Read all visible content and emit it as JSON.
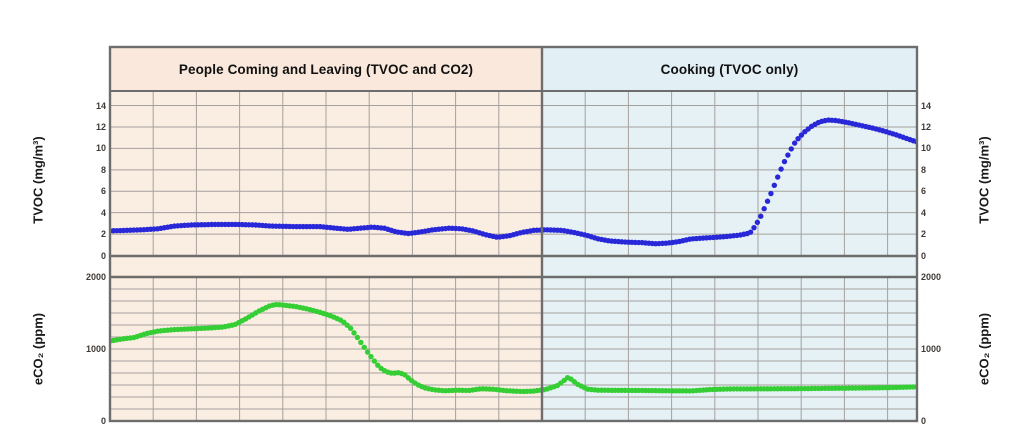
{
  "page": {
    "background": "#FFFFFF"
  },
  "regions": [
    {
      "title": "People Coming and Leaving (TVOC and CO2)",
      "background": "#F9E8DB",
      "plot_background": "#FAEDE2"
    },
    {
      "title": "Cooking (TVOC only)",
      "background": "#E2EFF5",
      "plot_background": "#E6F1F5"
    }
  ],
  "axes": {
    "tvoc_left": {
      "label": "TVOC (mg/m³)",
      "ticks": [
        "14",
        "12",
        "10",
        "8",
        "6",
        "4",
        "2",
        "0"
      ]
    },
    "tvoc_right": {
      "label": "TVOC (mg/m³)",
      "ticks": [
        "14",
        "12",
        "10",
        "8",
        "6",
        "4",
        "2",
        "0"
      ]
    },
    "eco2_left": {
      "label": "eCO₂ (ppm)",
      "ticks": [
        "2000",
        "1000",
        "0"
      ]
    },
    "eco2_right": {
      "label": "eCO₂ (ppm)",
      "ticks": [
        "2000",
        "1000",
        "0"
      ]
    }
  },
  "colors": {
    "tvoc_line": "#2828D8",
    "eco2_line": "#35CE35",
    "grid": "#A6A19D",
    "border": "#6D6D6D",
    "tick_text": "#3F3A36"
  },
  "chart_data": [
    {
      "type": "scatter",
      "title": "TVOC over time during people presence and cooking events",
      "ylabel": "TVOC (mg/m³)",
      "ylim": [
        0,
        14
      ],
      "ytick_step": 2,
      "grid": true,
      "legend": "none",
      "x_axis": "time (unlabeled), expressed as percent of plot width",
      "region_split_x_percent": 53.5,
      "region_labels": [
        "People Coming and Leaving (TVOC and CO2)",
        "Cooking (TVOC only)"
      ],
      "series": [
        {
          "name": "TVOC",
          "color": "#2828D8",
          "points": [
            [
              0,
              2.3
            ],
            [
              2,
              2.35
            ],
            [
              4,
              2.4
            ],
            [
              6,
              2.5
            ],
            [
              8,
              2.75
            ],
            [
              10,
              2.85
            ],
            [
              13,
              2.9
            ],
            [
              16,
              2.9
            ],
            [
              18,
              2.85
            ],
            [
              20,
              2.75
            ],
            [
              23,
              2.7
            ],
            [
              26,
              2.7
            ],
            [
              28,
              2.55
            ],
            [
              29.5,
              2.45
            ],
            [
              31,
              2.55
            ],
            [
              32.5,
              2.65
            ],
            [
              34,
              2.55
            ],
            [
              35.5,
              2.2
            ],
            [
              37,
              2.05
            ],
            [
              38.5,
              2.2
            ],
            [
              40,
              2.4
            ],
            [
              42,
              2.55
            ],
            [
              43.5,
              2.5
            ],
            [
              45,
              2.3
            ],
            [
              46.5,
              1.95
            ],
            [
              48,
              1.7
            ],
            [
              49.5,
              1.85
            ],
            [
              51,
              2.15
            ],
            [
              52.5,
              2.35
            ],
            [
              54,
              2.4
            ],
            [
              56,
              2.35
            ],
            [
              57.5,
              2.15
            ],
            [
              59,
              1.9
            ],
            [
              60.5,
              1.55
            ],
            [
              62,
              1.35
            ],
            [
              64,
              1.25
            ],
            [
              66,
              1.2
            ],
            [
              67.5,
              1.1
            ],
            [
              69,
              1.15
            ],
            [
              70.5,
              1.3
            ],
            [
              72,
              1.55
            ],
            [
              74,
              1.65
            ],
            [
              76,
              1.75
            ],
            [
              78,
              1.9
            ],
            [
              79.3,
              2.1
            ],
            [
              80,
              2.8
            ],
            [
              80.6,
              3.6
            ],
            [
              81.2,
              4.6
            ],
            [
              81.8,
              5.6
            ],
            [
              82.4,
              6.7
            ],
            [
              83,
              7.8
            ],
            [
              83.6,
              8.8
            ],
            [
              84.3,
              9.8
            ],
            [
              85,
              10.7
            ],
            [
              86,
              11.5
            ],
            [
              87,
              12.1
            ],
            [
              88,
              12.5
            ],
            [
              89,
              12.65
            ],
            [
              90,
              12.6
            ],
            [
              91.5,
              12.4
            ],
            [
              93,
              12.15
            ],
            [
              94.5,
              11.9
            ],
            [
              96,
              11.6
            ],
            [
              97.5,
              11.25
            ],
            [
              99,
              10.85
            ],
            [
              100,
              10.6
            ]
          ]
        }
      ]
    },
    {
      "type": "scatter",
      "title": "eCO₂ over time during people presence and cooking events",
      "ylabel": "eCO₂ (ppm)",
      "ylim": [
        0,
        2000
      ],
      "ytick_step": 1000,
      "grid": true,
      "legend": "none",
      "x_axis": "time (unlabeled), expressed as percent of plot width",
      "region_split_x_percent": 53.5,
      "region_labels": [
        "People Coming and Leaving (TVOC and CO2)",
        "Cooking (TVOC only)"
      ],
      "series": [
        {
          "name": "eCO2",
          "color": "#35CE35",
          "points": [
            [
              0,
              1110
            ],
            [
              1.5,
              1140
            ],
            [
              3,
              1160
            ],
            [
              4.5,
              1215
            ],
            [
              6,
              1250
            ],
            [
              8,
              1270
            ],
            [
              10,
              1280
            ],
            [
              12,
              1290
            ],
            [
              14,
              1305
            ],
            [
              15.5,
              1340
            ],
            [
              17,
              1430
            ],
            [
              18.5,
              1530
            ],
            [
              19.8,
              1600
            ],
            [
              20.7,
              1620
            ],
            [
              21.8,
              1605
            ],
            [
              23,
              1590
            ],
            [
              24.5,
              1555
            ],
            [
              26,
              1510
            ],
            [
              27.5,
              1455
            ],
            [
              28.8,
              1390
            ],
            [
              29.8,
              1290
            ],
            [
              30.6,
              1170
            ],
            [
              31.3,
              1055
            ],
            [
              32,
              945
            ],
            [
              32.7,
              840
            ],
            [
              33.4,
              745
            ],
            [
              34.2,
              685
            ],
            [
              35,
              662
            ],
            [
              35.8,
              672
            ],
            [
              36.5,
              645
            ],
            [
              37.2,
              575
            ],
            [
              38,
              510
            ],
            [
              39,
              460
            ],
            [
              40.2,
              432
            ],
            [
              41.5,
              420
            ],
            [
              43,
              428
            ],
            [
              44.5,
              424
            ],
            [
              46,
              448
            ],
            [
              47.5,
              442
            ],
            [
              49,
              422
            ],
            [
              51,
              410
            ],
            [
              52.5,
              416
            ],
            [
              54,
              438
            ],
            [
              55.5,
              495
            ],
            [
              56.8,
              610
            ],
            [
              58,
              505
            ],
            [
              59.2,
              442
            ],
            [
              60.5,
              428
            ],
            [
              63,
              426
            ],
            [
              66,
              424
            ],
            [
              69,
              420
            ],
            [
              72,
              418
            ],
            [
              74.5,
              438
            ],
            [
              77,
              446
            ],
            [
              80,
              446
            ],
            [
              83,
              448
            ],
            [
              86,
              450
            ],
            [
              89,
              454
            ],
            [
              92,
              457
            ],
            [
              95,
              461
            ],
            [
              97.5,
              466
            ],
            [
              100,
              475
            ]
          ]
        }
      ]
    }
  ]
}
